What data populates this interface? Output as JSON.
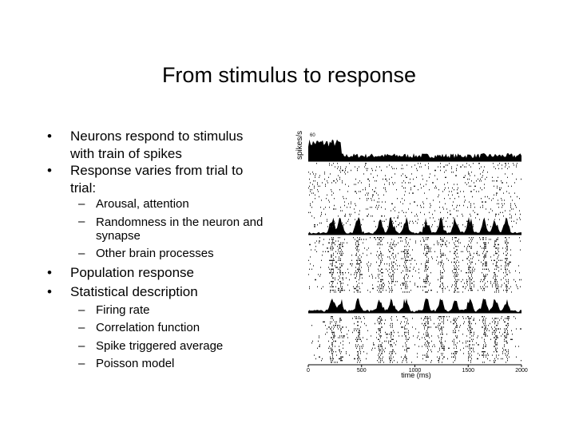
{
  "slide": {
    "title": "From stimulus to response",
    "bullets": [
      {
        "marker": "•",
        "lines": [
          "Neurons respond to stimulus",
          "with train of spikes"
        ]
      },
      {
        "marker": "•",
        "lines": [
          "Response varies from trial to",
          "trial:"
        ]
      }
    ],
    "sub_items_1": [
      {
        "marker": "–",
        "lines": [
          "Arousal, attention"
        ]
      },
      {
        "marker": "–",
        "lines": [
          "Randomness in the neuron and",
          "synapse"
        ]
      },
      {
        "marker": "–",
        "lines": [
          "Other brain processes"
        ]
      }
    ],
    "bullets_2": [
      {
        "marker": "•",
        "lines": [
          "Population response"
        ]
      },
      {
        "marker": "•",
        "lines": [
          "Statistical description"
        ]
      }
    ],
    "sub_items_2": [
      {
        "marker": "–",
        "lines": [
          "Firing rate"
        ]
      },
      {
        "marker": "–",
        "lines": [
          "Correlation function"
        ]
      },
      {
        "marker": "–",
        "lines": [
          "Spike triggered average"
        ]
      },
      {
        "marker": "–",
        "lines": [
          "Poisson model"
        ]
      }
    ]
  },
  "figure": {
    "ylabel": "spikes/s",
    "ymax_label": "60",
    "xlabel": "time (ms)",
    "x_ticks": [
      "0",
      "500",
      "1000",
      "1500",
      "2000"
    ]
  }
}
